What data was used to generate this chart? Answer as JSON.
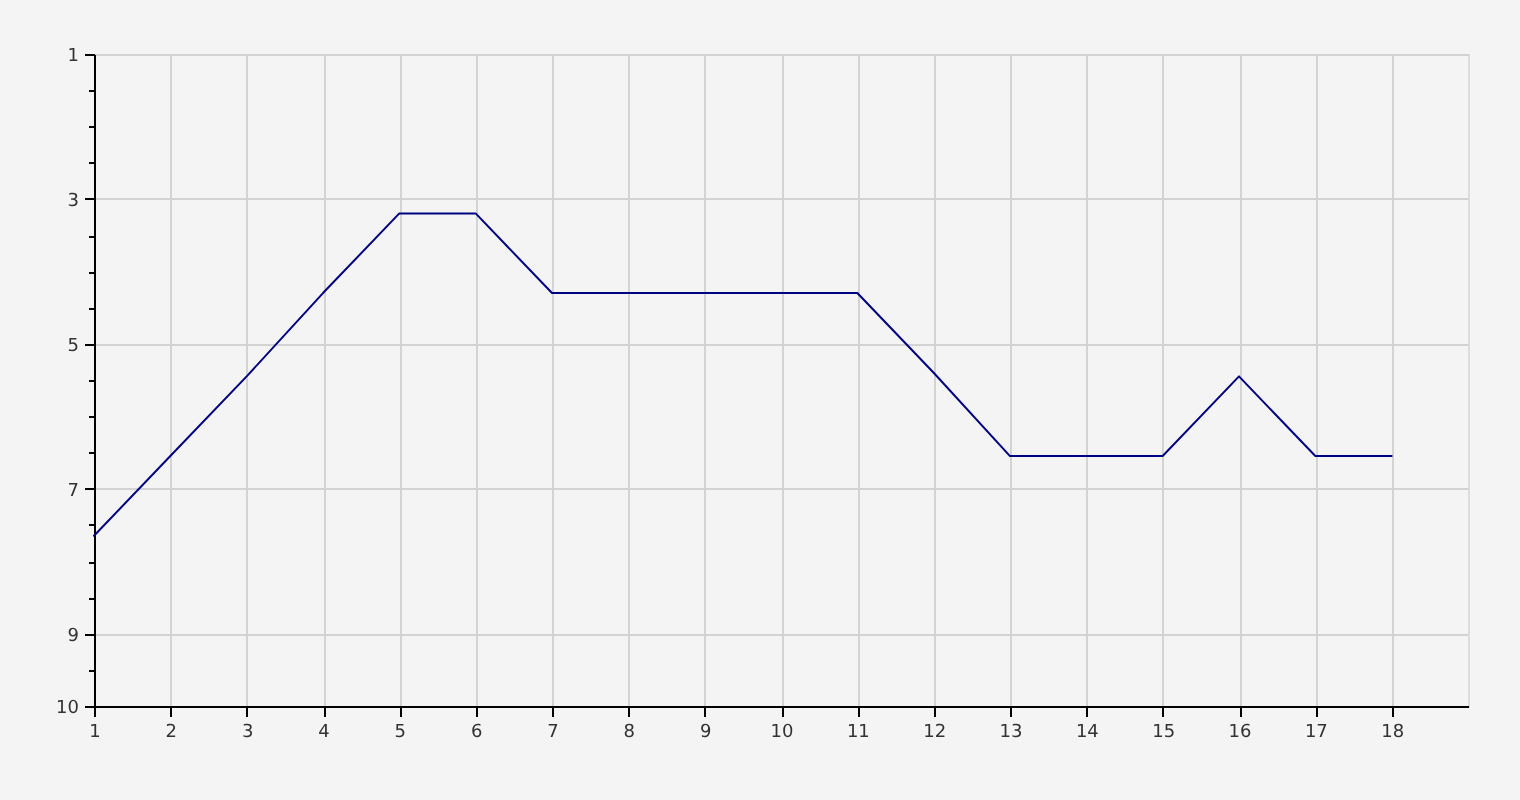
{
  "chart_data": {
    "type": "line",
    "x": [
      1,
      2,
      3,
      4,
      5,
      6,
      7,
      8,
      9,
      10,
      11,
      12,
      13,
      14,
      15,
      16,
      17,
      18
    ],
    "series": [
      {
        "color": "#000080",
        "values": [
          7.65,
          6.55,
          5.45,
          4.3,
          3.2,
          3.2,
          4.3,
          4.3,
          4.3,
          4.3,
          4.3,
          5.4,
          6.55,
          6.55,
          6.55,
          5.45,
          6.55,
          6.55
        ]
      }
    ],
    "xlim": [
      1,
      19
    ],
    "xticks": [
      1,
      2,
      3,
      4,
      5,
      6,
      7,
      8,
      9,
      10,
      11,
      12,
      13,
      14,
      15,
      16,
      17,
      18
    ],
    "ylim": [
      10,
      1
    ],
    "yticks": [
      1,
      {
        "value": 1.5,
        "label": null
      },
      {
        "value": 2,
        "label": null
      },
      {
        "value": 2.5,
        "label": null
      },
      3,
      {
        "value": 3.5,
        "label": null
      },
      {
        "value": 4,
        "label": null
      },
      {
        "value": 4.5,
        "label": null
      },
      5,
      {
        "value": 5.5,
        "label": null
      },
      {
        "value": 6,
        "label": null
      },
      {
        "value": 6.5,
        "label": null
      },
      7,
      {
        "value": 7.5,
        "label": null
      },
      {
        "value": 8,
        "label": null
      },
      {
        "value": 8.5,
        "label": null
      },
      9,
      {
        "value": 9.5,
        "label": null
      },
      10
    ],
    "grid": true,
    "marker": "none",
    "line_style": "solid"
  }
}
